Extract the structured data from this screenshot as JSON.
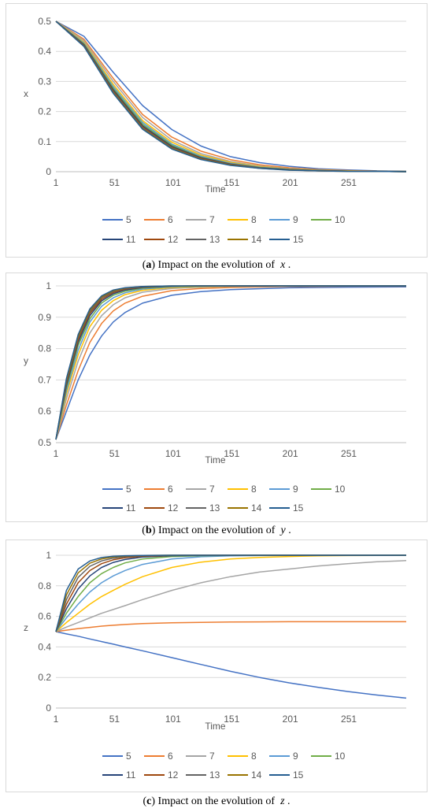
{
  "palette": [
    "#4472C4",
    "#ED7D31",
    "#A5A5A5",
    "#FFC000",
    "#5B9BD5",
    "#70AD47",
    "#264478",
    "#9E480E",
    "#636363",
    "#997300",
    "#255E91"
  ],
  "series_names": [
    "5",
    "6",
    "7",
    "8",
    "9",
    "10",
    "11",
    "12",
    "13",
    "14",
    "15"
  ],
  "captions": [
    {
      "letter": "a",
      "text": "Impact on the evolution of",
      "var": "x",
      "end": "."
    },
    {
      "letter": "b",
      "text": "Impact on the evolution of",
      "var": "y",
      "end": "."
    },
    {
      "letter": "c",
      "text": "Impact on the evolution of",
      "var": "z",
      "end": "."
    }
  ],
  "chart_data": [
    {
      "type": "line",
      "title": "",
      "xlabel": "Time",
      "ylabel": "x",
      "x_ticks": [
        "1",
        "51",
        "101",
        "151",
        "201",
        "251"
      ],
      "y_ticks": [
        "0",
        "0.1",
        "0.2",
        "0.3",
        "0.4",
        "0.5"
      ],
      "xlim": [
        1,
        300
      ],
      "ylim": [
        0,
        0.5
      ],
      "legend": "bottom",
      "grid": true,
      "x": [
        1,
        25,
        50,
        75,
        100,
        125,
        150,
        175,
        200,
        225,
        250,
        275,
        300
      ],
      "series": [
        {
          "name": "5",
          "values": [
            0.5,
            0.45,
            0.33,
            0.22,
            0.14,
            0.085,
            0.05,
            0.03,
            0.018,
            0.01,
            0.006,
            0.003,
            0.002
          ]
        },
        {
          "name": "6",
          "values": [
            0.5,
            0.44,
            0.31,
            0.19,
            0.115,
            0.068,
            0.04,
            0.023,
            0.013,
            0.007,
            0.004,
            0.002,
            0.001
          ]
        },
        {
          "name": "7",
          "values": [
            0.5,
            0.435,
            0.3,
            0.18,
            0.105,
            0.06,
            0.034,
            0.019,
            0.01,
            0.006,
            0.003,
            0.002,
            0.001
          ]
        },
        {
          "name": "8",
          "values": [
            0.5,
            0.43,
            0.29,
            0.17,
            0.098,
            0.055,
            0.031,
            0.017,
            0.009,
            0.005,
            0.003,
            0.001,
            0.001
          ]
        },
        {
          "name": "9",
          "values": [
            0.5,
            0.427,
            0.283,
            0.164,
            0.092,
            0.051,
            0.028,
            0.015,
            0.008,
            0.004,
            0.002,
            0.001,
            0.001
          ]
        },
        {
          "name": "10",
          "values": [
            0.5,
            0.424,
            0.277,
            0.158,
            0.088,
            0.048,
            0.026,
            0.014,
            0.007,
            0.004,
            0.002,
            0.001,
            0.0
          ]
        },
        {
          "name": "11",
          "values": [
            0.5,
            0.422,
            0.272,
            0.153,
            0.084,
            0.046,
            0.025,
            0.013,
            0.007,
            0.004,
            0.002,
            0.001,
            0.0
          ]
        },
        {
          "name": "12",
          "values": [
            0.5,
            0.42,
            0.268,
            0.149,
            0.081,
            0.044,
            0.024,
            0.012,
            0.006,
            0.003,
            0.002,
            0.001,
            0.0
          ]
        },
        {
          "name": "13",
          "values": [
            0.5,
            0.418,
            0.265,
            0.146,
            0.079,
            0.042,
            0.023,
            0.012,
            0.006,
            0.003,
            0.002,
            0.001,
            0.0
          ]
        },
        {
          "name": "14",
          "values": [
            0.5,
            0.417,
            0.262,
            0.143,
            0.077,
            0.041,
            0.022,
            0.011,
            0.006,
            0.003,
            0.001,
            0.001,
            0.0
          ]
        },
        {
          "name": "15",
          "values": [
            0.5,
            0.416,
            0.26,
            0.141,
            0.075,
            0.04,
            0.021,
            0.011,
            0.005,
            0.003,
            0.001,
            0.001,
            0.0
          ]
        }
      ]
    },
    {
      "type": "line",
      "title": "",
      "xlabel": "Time",
      "ylabel": "y",
      "x_ticks": [
        "1",
        "51",
        "101",
        "151",
        "201",
        "251"
      ],
      "y_ticks": [
        "0.5",
        "0.6",
        "0.7",
        "0.8",
        "0.9",
        "1"
      ],
      "xlim": [
        1,
        300
      ],
      "ylim": [
        0.5,
        1
      ],
      "legend": "bottom",
      "grid": true,
      "x": [
        1,
        10,
        20,
        30,
        40,
        50,
        60,
        75,
        100,
        125,
        150,
        200,
        250,
        300
      ],
      "series": [
        {
          "name": "5",
          "values": [
            0.51,
            0.6,
            0.7,
            0.78,
            0.84,
            0.885,
            0.915,
            0.945,
            0.97,
            0.982,
            0.988,
            0.994,
            0.996,
            0.997
          ]
        },
        {
          "name": "6",
          "values": [
            0.51,
            0.62,
            0.73,
            0.82,
            0.88,
            0.92,
            0.945,
            0.967,
            0.985,
            0.992,
            0.995,
            0.998,
            0.999,
            0.999
          ]
        },
        {
          "name": "7",
          "values": [
            0.51,
            0.64,
            0.76,
            0.85,
            0.905,
            0.94,
            0.962,
            0.98,
            0.992,
            0.996,
            0.998,
            0.999,
            1.0,
            1.0
          ]
        },
        {
          "name": "8",
          "values": [
            0.51,
            0.655,
            0.78,
            0.87,
            0.922,
            0.953,
            0.972,
            0.986,
            0.995,
            0.998,
            0.999,
            1.0,
            1.0,
            1.0
          ]
        },
        {
          "name": "9",
          "values": [
            0.51,
            0.665,
            0.795,
            0.885,
            0.935,
            0.962,
            0.978,
            0.99,
            0.997,
            0.999,
            1.0,
            1.0,
            1.0,
            1.0
          ]
        },
        {
          "name": "10",
          "values": [
            0.51,
            0.675,
            0.81,
            0.895,
            0.945,
            0.97,
            0.983,
            0.993,
            0.998,
            0.999,
            1.0,
            1.0,
            1.0,
            1.0
          ]
        },
        {
          "name": "11",
          "values": [
            0.51,
            0.683,
            0.82,
            0.905,
            0.952,
            0.975,
            0.987,
            0.995,
            0.999,
            1.0,
            1.0,
            1.0,
            1.0,
            1.0
          ]
        },
        {
          "name": "12",
          "values": [
            0.51,
            0.69,
            0.828,
            0.912,
            0.957,
            0.979,
            0.99,
            0.996,
            0.999,
            1.0,
            1.0,
            1.0,
            1.0,
            1.0
          ]
        },
        {
          "name": "13",
          "values": [
            0.51,
            0.695,
            0.835,
            0.918,
            0.962,
            0.982,
            0.992,
            0.997,
            0.999,
            1.0,
            1.0,
            1.0,
            1.0,
            1.0
          ]
        },
        {
          "name": "14",
          "values": [
            0.51,
            0.7,
            0.84,
            0.923,
            0.965,
            0.985,
            0.993,
            0.998,
            1.0,
            1.0,
            1.0,
            1.0,
            1.0,
            1.0
          ]
        },
        {
          "name": "15",
          "values": [
            0.51,
            0.705,
            0.845,
            0.927,
            0.968,
            0.987,
            0.994,
            0.998,
            1.0,
            1.0,
            1.0,
            1.0,
            1.0,
            1.0
          ]
        }
      ]
    },
    {
      "type": "line",
      "title": "",
      "xlabel": "Time",
      "ylabel": "z",
      "x_ticks": [
        "1",
        "51",
        "101",
        "151",
        "201",
        "251"
      ],
      "y_ticks": [
        "0",
        "0.2",
        "0.4",
        "0.6",
        "0.8",
        "1"
      ],
      "xlim": [
        1,
        300
      ],
      "ylim": [
        0,
        1
      ],
      "legend": "bottom",
      "grid": true,
      "x": [
        1,
        10,
        20,
        30,
        40,
        50,
        60,
        75,
        100,
        125,
        150,
        175,
        200,
        225,
        250,
        275,
        300
      ],
      "series": [
        {
          "name": "5",
          "values": [
            0.5,
            0.485,
            0.47,
            0.452,
            0.435,
            0.418,
            0.4,
            0.375,
            0.33,
            0.285,
            0.24,
            0.2,
            0.165,
            0.135,
            0.108,
            0.085,
            0.065
          ]
        },
        {
          "name": "6",
          "values": [
            0.5,
            0.51,
            0.52,
            0.528,
            0.536,
            0.542,
            0.547,
            0.553,
            0.558,
            0.561,
            0.563,
            0.564,
            0.565,
            0.565,
            0.565,
            0.565,
            0.565
          ]
        },
        {
          "name": "7",
          "values": [
            0.5,
            0.53,
            0.56,
            0.59,
            0.62,
            0.645,
            0.67,
            0.71,
            0.77,
            0.82,
            0.86,
            0.89,
            0.91,
            0.93,
            0.945,
            0.957,
            0.965
          ]
        },
        {
          "name": "8",
          "values": [
            0.5,
            0.56,
            0.62,
            0.68,
            0.73,
            0.77,
            0.81,
            0.86,
            0.92,
            0.955,
            0.975,
            0.986,
            0.992,
            0.996,
            0.998,
            0.999,
            1.0
          ]
        },
        {
          "name": "9",
          "values": [
            0.5,
            0.59,
            0.68,
            0.76,
            0.82,
            0.865,
            0.9,
            0.94,
            0.975,
            0.99,
            0.996,
            0.998,
            0.999,
            1.0,
            1.0,
            1.0,
            1.0
          ]
        },
        {
          "name": "10",
          "values": [
            0.5,
            0.62,
            0.73,
            0.82,
            0.88,
            0.92,
            0.95,
            0.975,
            0.992,
            0.997,
            0.999,
            1.0,
            1.0,
            1.0,
            1.0,
            1.0,
            1.0
          ]
        },
        {
          "name": "11",
          "values": [
            0.5,
            0.65,
            0.78,
            0.865,
            0.92,
            0.953,
            0.972,
            0.988,
            0.997,
            0.999,
            1.0,
            1.0,
            1.0,
            1.0,
            1.0,
            1.0,
            1.0
          ]
        },
        {
          "name": "12",
          "values": [
            0.5,
            0.68,
            0.82,
            0.9,
            0.945,
            0.97,
            0.984,
            0.994,
            0.999,
            1.0,
            1.0,
            1.0,
            1.0,
            1.0,
            1.0,
            1.0,
            1.0
          ]
        },
        {
          "name": "13",
          "values": [
            0.5,
            0.71,
            0.855,
            0.928,
            0.963,
            0.981,
            0.991,
            0.997,
            1.0,
            1.0,
            1.0,
            1.0,
            1.0,
            1.0,
            1.0,
            1.0,
            1.0
          ]
        },
        {
          "name": "14",
          "values": [
            0.5,
            0.74,
            0.885,
            0.948,
            0.976,
            0.989,
            0.995,
            0.999,
            1.0,
            1.0,
            1.0,
            1.0,
            1.0,
            1.0,
            1.0,
            1.0,
            1.0
          ]
        },
        {
          "name": "15",
          "values": [
            0.5,
            0.77,
            0.91,
            0.963,
            0.985,
            0.994,
            0.997,
            0.999,
            1.0,
            1.0,
            1.0,
            1.0,
            1.0,
            1.0,
            1.0,
            1.0,
            1.0
          ]
        }
      ]
    }
  ]
}
